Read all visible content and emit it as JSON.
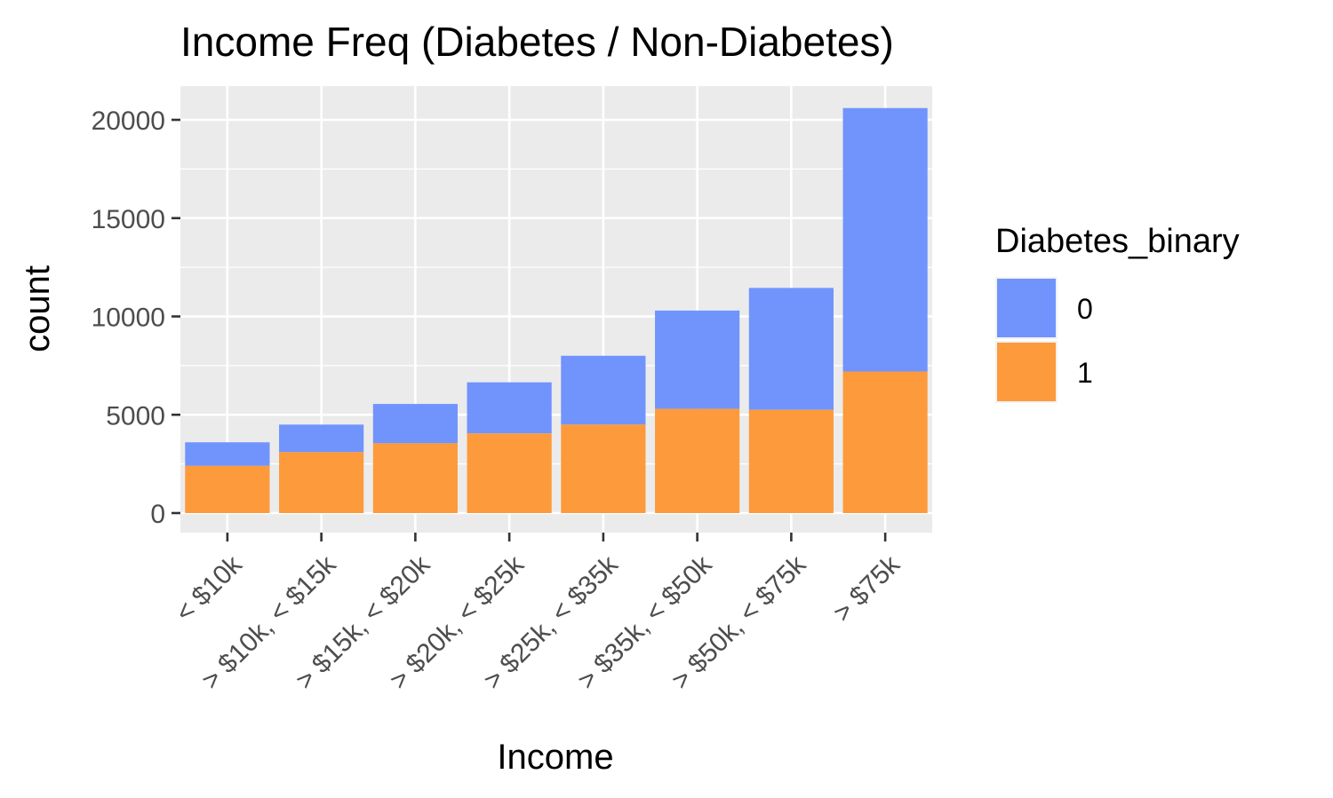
{
  "chart_data": {
    "type": "bar",
    "stacked": true,
    "title": "Income Freq (Diabetes / Non-Diabetes)",
    "xlabel": "Income",
    "ylabel": "count",
    "ylim": [
      0,
      22000
    ],
    "yticks": [
      "0",
      "5000",
      "10000",
      "15000",
      "20000"
    ],
    "ytick_values": [
      0,
      5000,
      10000,
      15000,
      20000
    ],
    "grid": true,
    "categories": [
      "< $10k",
      "> $10k, < $15k",
      "> $15k, < $20k",
      "> $20k, < $25k",
      "> $25k, < $35k",
      "> $35k, < $50k",
      "> $50k, < $75k",
      "> $75k"
    ],
    "series": [
      {
        "name": "0",
        "color": "#7094fc",
        "values": [
          1200,
          1400,
          2000,
          2600,
          3500,
          5000,
          6200,
          13400
        ]
      },
      {
        "name": "1",
        "color": "#fd9a3c",
        "values": [
          2400,
          3100,
          3550,
          4050,
          4500,
          5300,
          5250,
          7200
        ]
      }
    ],
    "legend": {
      "title": "Diabetes_binary",
      "position": "right"
    }
  }
}
